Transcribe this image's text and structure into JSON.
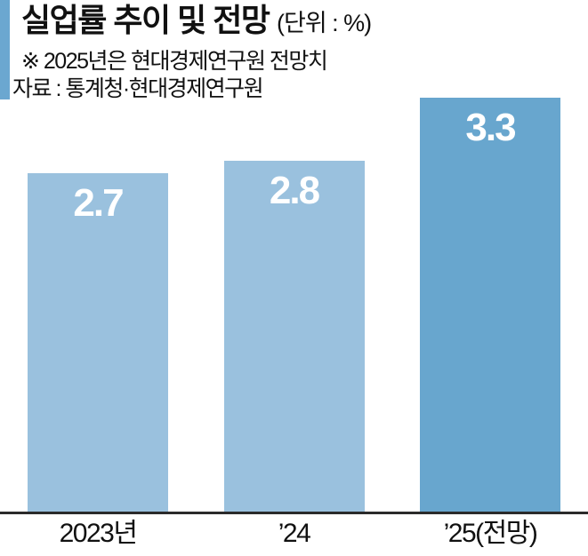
{
  "header": {
    "title": "실업률 추이 및 전망",
    "unit_label": "(단위 : %)",
    "note": "※ 2025년은 현대경제연구원 전망치",
    "source": "자료 : 통계청·현대경제연구원"
  },
  "colors": {
    "accent_bar": "#6BA7D0",
    "bar_light": "#9AC1DE",
    "bar_dark": "#68A6CE",
    "axis_line": "#2B2B2B",
    "value_label": "#FFFFFF",
    "text": "#111111"
  },
  "chart_data": {
    "type": "bar",
    "title": "실업률 추이 및 전망",
    "unit": "%",
    "categories": [
      "2023년",
      "’24",
      "’25(전망)"
    ],
    "values": [
      2.7,
      2.8,
      3.3
    ],
    "value_labels": [
      "2.7",
      "2.8",
      "3.3"
    ],
    "bar_colors": [
      "#9AC1DE",
      "#9AC1DE",
      "#68A6CE"
    ],
    "ylim": [
      0,
      3.5
    ],
    "grid": false,
    "legend": false,
    "annotations": [
      "2025년은 현대경제연구원 전망치"
    ],
    "source": "통계청·현대경제연구원"
  }
}
